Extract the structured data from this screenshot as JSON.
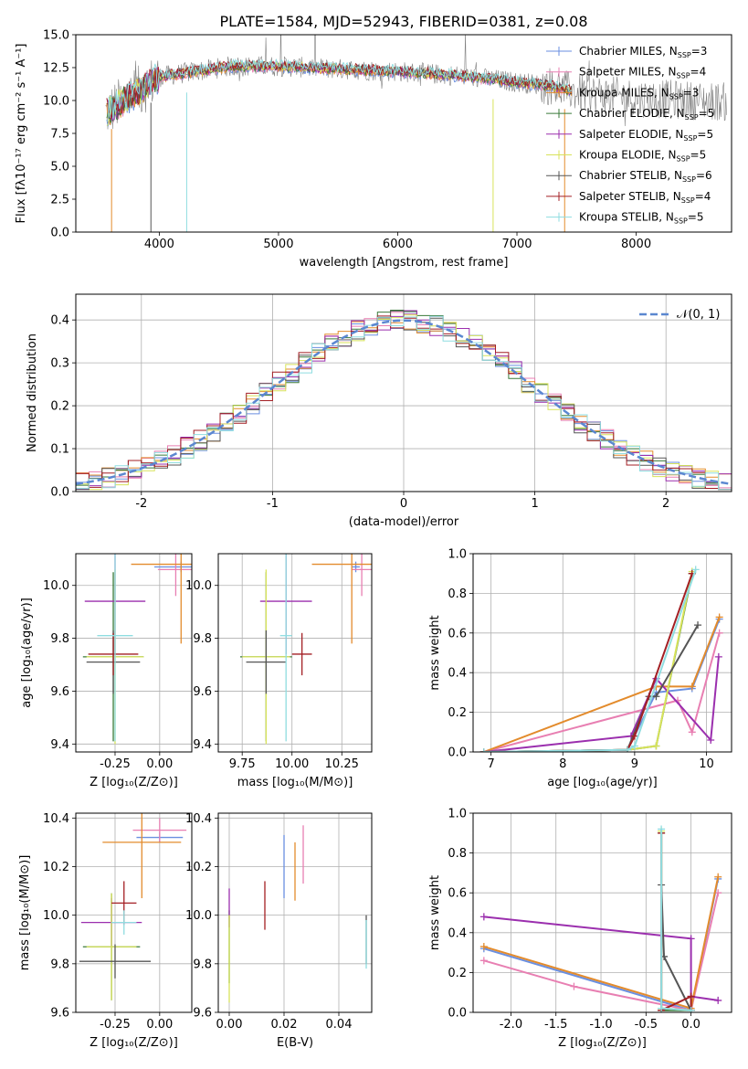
{
  "figure_title": "PLATE=1584, MJD=52943, FIBERID=0381, z=0.08",
  "colors": {
    "Chabrier MILES": "#6a8fe0",
    "Salpeter MILES": "#e87fb2",
    "Kroupa MILES": "#e38b2c",
    "Chabrier ELODIE": "#3a7a3a",
    "Salpeter ELODIE": "#9b2fae",
    "Kroupa ELODIE": "#d8e35a",
    "Chabrier STELIB": "#555555",
    "Salpeter STELIB": "#a31f24",
    "Kroupa STELIB": "#8fdde0"
  },
  "chart_data": [
    {
      "id": "spectrum",
      "type": "line",
      "xlabel": "wavelength [Angstrom, rest frame]",
      "ylabel": "Flux [fλ10⁻¹⁷ erg cm⁻² s⁻¹ A⁻¹]",
      "xlim": [
        3300,
        8800
      ],
      "ylim": [
        0,
        15
      ],
      "xticks": [
        4000,
        5000,
        6000,
        7000,
        8000
      ],
      "yticks": [
        0.0,
        2.5,
        5.0,
        7.5,
        10.0,
        12.5,
        15.0
      ],
      "legend_position": "top-right",
      "legend": [
        {
          "label": "Chabrier MILES, N",
          "sub": "SSP",
          "tail": "=3"
        },
        {
          "label": "Salpeter MILES, N",
          "sub": "SSP",
          "tail": "=4"
        },
        {
          "label": "Kroupa MILES, N",
          "sub": "SSP",
          "tail": "=3"
        },
        {
          "label": "Chabrier ELODIE, N",
          "sub": "SSP",
          "tail": "=5"
        },
        {
          "label": "Salpeter ELODIE, N",
          "sub": "SSP",
          "tail": "=5"
        },
        {
          "label": "Kroupa ELODIE, N",
          "sub": "SSP",
          "tail": "=5"
        },
        {
          "label": "Chabrier STELIB, N",
          "sub": "SSP",
          "tail": "=6"
        },
        {
          "label": "Salpeter STELIB, N",
          "sub": "SSP",
          "tail": "=4"
        },
        {
          "label": "Kroupa STELIB, N",
          "sub": "SSP",
          "tail": "=5"
        }
      ],
      "continuum": [
        [
          3550,
          9.0
        ],
        [
          3700,
          10.0
        ],
        [
          3850,
          10.8
        ],
        [
          4000,
          11.8
        ],
        [
          4300,
          12.2
        ],
        [
          4600,
          12.6
        ],
        [
          5000,
          12.6
        ],
        [
          5500,
          12.4
        ],
        [
          6000,
          12.2
        ],
        [
          6500,
          11.9
        ],
        [
          7000,
          11.4
        ],
        [
          7300,
          11.1
        ],
        [
          7500,
          10.6
        ],
        [
          8000,
          10.2
        ],
        [
          8500,
          10.0
        ],
        [
          8760,
          9.9
        ]
      ]
    },
    {
      "id": "residuals",
      "type": "histogram",
      "xlabel": "(data-model)/error",
      "ylabel": "Normed distribution",
      "xlim": [
        -2.5,
        2.5
      ],
      "ylim": [
        0,
        0.46
      ],
      "xticks": [
        -2,
        -1,
        0,
        1,
        2
      ],
      "yticks": [
        0.0,
        0.1,
        0.2,
        0.3,
        0.4
      ],
      "bin_width": 0.1,
      "grid": true,
      "reference": {
        "label": "𝒩(0, 1)",
        "mean": 0,
        "sigma": 1
      },
      "legend_position": "top-right"
    },
    {
      "id": "age_vs_Z",
      "type": "errorbar",
      "xlabel": "Z [log₁₀(Z/Z⊙)]",
      "ylabel": "age  [log₁₀(age/yr)]",
      "xlim": [
        -0.47,
        0.18
      ],
      "ylim": [
        9.37,
        10.12
      ],
      "xticks": [
        -0.25,
        0.0
      ],
      "ytick_labels": [
        "-0.25",
        "0.00"
      ],
      "yticks": [
        9.4,
        9.6,
        9.8,
        10.0
      ],
      "grid": true,
      "points": [
        {
          "series": "Chabrier MILES",
          "x": 0.12,
          "y": 10.07,
          "xerr": 0.15,
          "yerr": 0.02
        },
        {
          "series": "Salpeter MILES",
          "x": 0.09,
          "y": 10.06,
          "xerr": 0.1,
          "yerr": 0.1
        },
        {
          "series": "Kroupa MILES",
          "x": 0.12,
          "y": 10.08,
          "xerr": 0.28,
          "yerr": 0.3
        },
        {
          "series": "Chabrier ELODIE",
          "x": -0.26,
          "y": 9.73,
          "xerr": 0.17,
          "yerr": 0.32
        },
        {
          "series": "Salpeter ELODIE",
          "x": -0.25,
          "y": 9.94,
          "xerr": 0.17,
          "yerr": 0.2
        },
        {
          "series": "Kroupa ELODIE",
          "x": -0.25,
          "y": 9.73,
          "xerr": 0.16,
          "yerr": 0.33
        },
        {
          "series": "Chabrier STELIB",
          "x": -0.26,
          "y": 9.71,
          "xerr": 0.15,
          "yerr": 0.12
        },
        {
          "series": "Salpeter STELIB",
          "x": -0.26,
          "y": 9.74,
          "xerr": 0.14,
          "yerr": 0.08
        },
        {
          "series": "Kroupa STELIB",
          "x": -0.25,
          "y": 9.81,
          "xerr": 0.1,
          "yerr": 0.4
        }
      ]
    },
    {
      "id": "age_vs_mass",
      "type": "errorbar",
      "xlabel": "mass [log₁₀(M/M⊙)]",
      "ylabel": "",
      "xlim": [
        9.63,
        10.4
      ],
      "ylim": [
        9.37,
        10.12
      ],
      "xticks": [
        9.75,
        10.0,
        10.25
      ],
      "yticks": [
        9.4,
        9.6,
        9.8,
        10.0
      ],
      "grid": true,
      "points": [
        {
          "series": "Chabrier MILES",
          "x": 10.32,
          "y": 10.07,
          "xerr": 0.02,
          "yerr": 0.02
        },
        {
          "series": "Salpeter MILES",
          "x": 10.35,
          "y": 10.06,
          "xerr": 0.05,
          "yerr": 0.1
        },
        {
          "series": "Kroupa MILES",
          "x": 10.3,
          "y": 10.08,
          "xerr": 0.2,
          "yerr": 0.3
        },
        {
          "series": "Chabrier ELODIE",
          "x": 9.87,
          "y": 9.73,
          "xerr": 0.13,
          "yerr": 0.32
        },
        {
          "series": "Salpeter ELODIE",
          "x": 9.97,
          "y": 9.94,
          "xerr": 0.13,
          "yerr": 0.2
        },
        {
          "series": "Kroupa ELODIE",
          "x": 9.87,
          "y": 9.73,
          "xerr": 0.12,
          "yerr": 0.33
        },
        {
          "series": "Chabrier STELIB",
          "x": 9.87,
          "y": 9.71,
          "xerr": 0.1,
          "yerr": 0.12
        },
        {
          "series": "Salpeter STELIB",
          "x": 10.05,
          "y": 9.74,
          "xerr": 0.05,
          "yerr": 0.08
        },
        {
          "series": "Kroupa STELIB",
          "x": 9.97,
          "y": 9.81,
          "xerr": 0.03,
          "yerr": 0.4
        }
      ]
    },
    {
      "id": "weight_vs_age",
      "type": "line",
      "xlabel": "age  [log₁₀(age/yr)]",
      "ylabel": "mass weight",
      "xlim": [
        6.75,
        10.35
      ],
      "ylim": [
        0,
        1.0
      ],
      "xticks": [
        7,
        8,
        9,
        10
      ],
      "yticks": [
        0.0,
        0.2,
        0.4,
        0.6,
        0.8,
        1.0
      ],
      "grid": true,
      "series": [
        {
          "name": "Chabrier MILES",
          "x": [
            6.9,
            8.9,
            9.3,
            9.8,
            10.18
          ],
          "y": [
            0.0,
            0.01,
            0.3,
            0.32,
            0.67
          ]
        },
        {
          "name": "Salpeter MILES",
          "x": [
            6.9,
            9.6,
            9.8,
            10.18
          ],
          "y": [
            0.0,
            0.26,
            0.1,
            0.6
          ]
        },
        {
          "name": "Kroupa MILES",
          "x": [
            6.9,
            9.3,
            9.8,
            10.18
          ],
          "y": [
            0.0,
            0.33,
            0.33,
            0.68
          ]
        },
        {
          "name": "Chabrier ELODIE",
          "x": [
            6.9,
            8.9,
            9.3,
            9.8
          ],
          "y": [
            0.0,
            0.01,
            0.03,
            0.9
          ]
        },
        {
          "name": "Salpeter ELODIE",
          "x": [
            6.9,
            8.95,
            9.3,
            10.06,
            10.17
          ],
          "y": [
            0.0,
            0.08,
            0.37,
            0.06,
            0.48
          ]
        },
        {
          "name": "Kroupa ELODIE",
          "x": [
            6.9,
            8.9,
            9.3,
            9.8
          ],
          "y": [
            0.0,
            0.01,
            0.03,
            0.91
          ]
        },
        {
          "name": "Chabrier STELIB",
          "x": [
            6.9,
            8.9,
            9.2,
            9.3,
            9.88
          ],
          "y": [
            0.0,
            0.01,
            0.28,
            0.28,
            0.64
          ]
        },
        {
          "name": "Salpeter STELIB",
          "x": [
            6.9,
            8.9,
            9.0,
            9.8
          ],
          "y": [
            0.0,
            0.01,
            0.08,
            0.9
          ]
        },
        {
          "name": "Kroupa STELIB",
          "x": [
            6.9,
            8.9,
            9.0,
            9.85
          ],
          "y": [
            0.0,
            0.01,
            0.03,
            0.92
          ]
        }
      ]
    },
    {
      "id": "mass_vs_Z",
      "type": "errorbar",
      "xlabel": "Z [log₁₀(Z/Z⊙)]",
      "ylabel": "mass [log₁₀(M/M⊙)]",
      "xlim": [
        -0.47,
        0.18
      ],
      "ylim": [
        9.6,
        10.42
      ],
      "xticks": [
        -0.25,
        0.0
      ],
      "ytick_labels": [
        "-0.25",
        "0.00"
      ],
      "yticks": [
        9.6,
        9.8,
        10.0,
        10.2,
        10.4
      ],
      "grid": true,
      "points": [
        {
          "series": "Chabrier MILES",
          "x": 0.0,
          "y": 10.32,
          "xerr": 0.13,
          "yerr": 0.02
        },
        {
          "series": "Salpeter MILES",
          "x": 0.0,
          "y": 10.35,
          "xerr": 0.15,
          "yerr": 0.05
        },
        {
          "series": "Kroupa MILES",
          "x": -0.1,
          "y": 10.3,
          "xerr": 0.22,
          "yerr": 0.23
        },
        {
          "series": "Chabrier ELODIE",
          "x": -0.27,
          "y": 9.87,
          "xerr": 0.16,
          "yerr": 0.22
        },
        {
          "series": "Salpeter ELODIE",
          "x": -0.27,
          "y": 9.97,
          "xerr": 0.17,
          "yerr": 0.1
        },
        {
          "series": "Kroupa ELODIE",
          "x": -0.27,
          "y": 9.87,
          "xerr": 0.14,
          "yerr": 0.22
        },
        {
          "series": "Chabrier STELIB",
          "x": -0.25,
          "y": 9.81,
          "xerr": 0.2,
          "yerr": 0.07
        },
        {
          "series": "Salpeter STELIB",
          "x": -0.2,
          "y": 10.05,
          "xerr": 0.07,
          "yerr": 0.09
        },
        {
          "series": "Kroupa STELIB",
          "x": -0.2,
          "y": 9.97,
          "xerr": 0.07,
          "yerr": 0.05
        }
      ]
    },
    {
      "id": "mass_vs_ebv",
      "type": "errorbar",
      "xlabel": "E(B-V)",
      "ylabel": "",
      "xlim": [
        -0.004,
        0.052
      ],
      "ylim": [
        9.6,
        10.42
      ],
      "xticks": [
        0.0,
        0.02,
        0.04
      ],
      "yticks": [
        9.6,
        9.8,
        10.0,
        10.2,
        10.4
      ],
      "grid": true,
      "points": [
        {
          "series": "Chabrier MILES",
          "x": 0.02,
          "y": 10.2,
          "xerr": 0,
          "yerr": 0.13
        },
        {
          "series": "Salpeter MILES",
          "x": 0.027,
          "y": 10.25,
          "xerr": 0,
          "yerr": 0.12
        },
        {
          "series": "Kroupa MILES",
          "x": 0.024,
          "y": 10.18,
          "xerr": 0,
          "yerr": 0.12
        },
        {
          "series": "Chabrier ELODIE",
          "x": 0.0,
          "y": 9.87,
          "xerr": 0,
          "yerr": 0.15
        },
        {
          "series": "Salpeter ELODIE",
          "x": 0.0,
          "y": 10.03,
          "xerr": 0,
          "yerr": 0.08
        },
        {
          "series": "Kroupa ELODIE",
          "x": 0.0,
          "y": 9.82,
          "xerr": 0,
          "yerr": 0.18
        },
        {
          "series": "Chabrier STELIB",
          "x": 0.05,
          "y": 9.9,
          "xerr": 0,
          "yerr": 0.1
        },
        {
          "series": "Salpeter STELIB",
          "x": 0.013,
          "y": 10.04,
          "xerr": 0,
          "yerr": 0.1
        },
        {
          "series": "Kroupa STELIB",
          "x": 0.05,
          "y": 9.88,
          "xerr": 0,
          "yerr": 0.1
        }
      ]
    },
    {
      "id": "weight_vs_Z",
      "type": "line",
      "xlabel": "Z [log₁₀(Z/Z⊙)]",
      "ylabel": "mass weight",
      "xlim": [
        -2.42,
        0.45
      ],
      "ylim": [
        0,
        1.0
      ],
      "xticks": [
        -2.0,
        -1.5,
        -1.0,
        -0.5,
        0.0
      ],
      "yticks": [
        0.0,
        0.2,
        0.4,
        0.6,
        0.8,
        1.0
      ],
      "grid": true,
      "series": [
        {
          "name": "Chabrier MILES",
          "x": [
            -2.3,
            0.0,
            0.3
          ],
          "y": [
            0.32,
            0.01,
            0.67
          ]
        },
        {
          "name": "Salpeter MILES",
          "x": [
            -2.3,
            -1.3,
            0.0,
            0.3
          ],
          "y": [
            0.26,
            0.13,
            0.01,
            0.6
          ]
        },
        {
          "name": "Kroupa MILES",
          "x": [
            -2.3,
            0.0,
            0.3
          ],
          "y": [
            0.33,
            0.02,
            0.68
          ]
        },
        {
          "name": "Chabrier ELODIE",
          "x": [
            -0.33,
            -0.33,
            0.0
          ],
          "y": [
            0.9,
            0.01,
            0.01
          ]
        },
        {
          "name": "Salpeter ELODIE",
          "x": [
            -2.3,
            0.0,
            0.0,
            0.3
          ],
          "y": [
            0.48,
            0.37,
            0.08,
            0.06
          ]
        },
        {
          "name": "Kroupa ELODIE",
          "x": [
            -0.33,
            -0.33,
            0.0
          ],
          "y": [
            0.91,
            0.02,
            0.01
          ]
        },
        {
          "name": "Chabrier STELIB",
          "x": [
            -0.33,
            -0.3,
            0.0
          ],
          "y": [
            0.64,
            0.28,
            0.01
          ]
        },
        {
          "name": "Salpeter STELIB",
          "x": [
            -0.33,
            -0.33,
            0.0,
            0.0
          ],
          "y": [
            0.9,
            0.01,
            0.08,
            0.01
          ]
        },
        {
          "name": "Kroupa STELIB",
          "x": [
            -0.33,
            -0.33,
            0.0
          ],
          "y": [
            0.92,
            0.02,
            0.01
          ]
        }
      ]
    }
  ]
}
